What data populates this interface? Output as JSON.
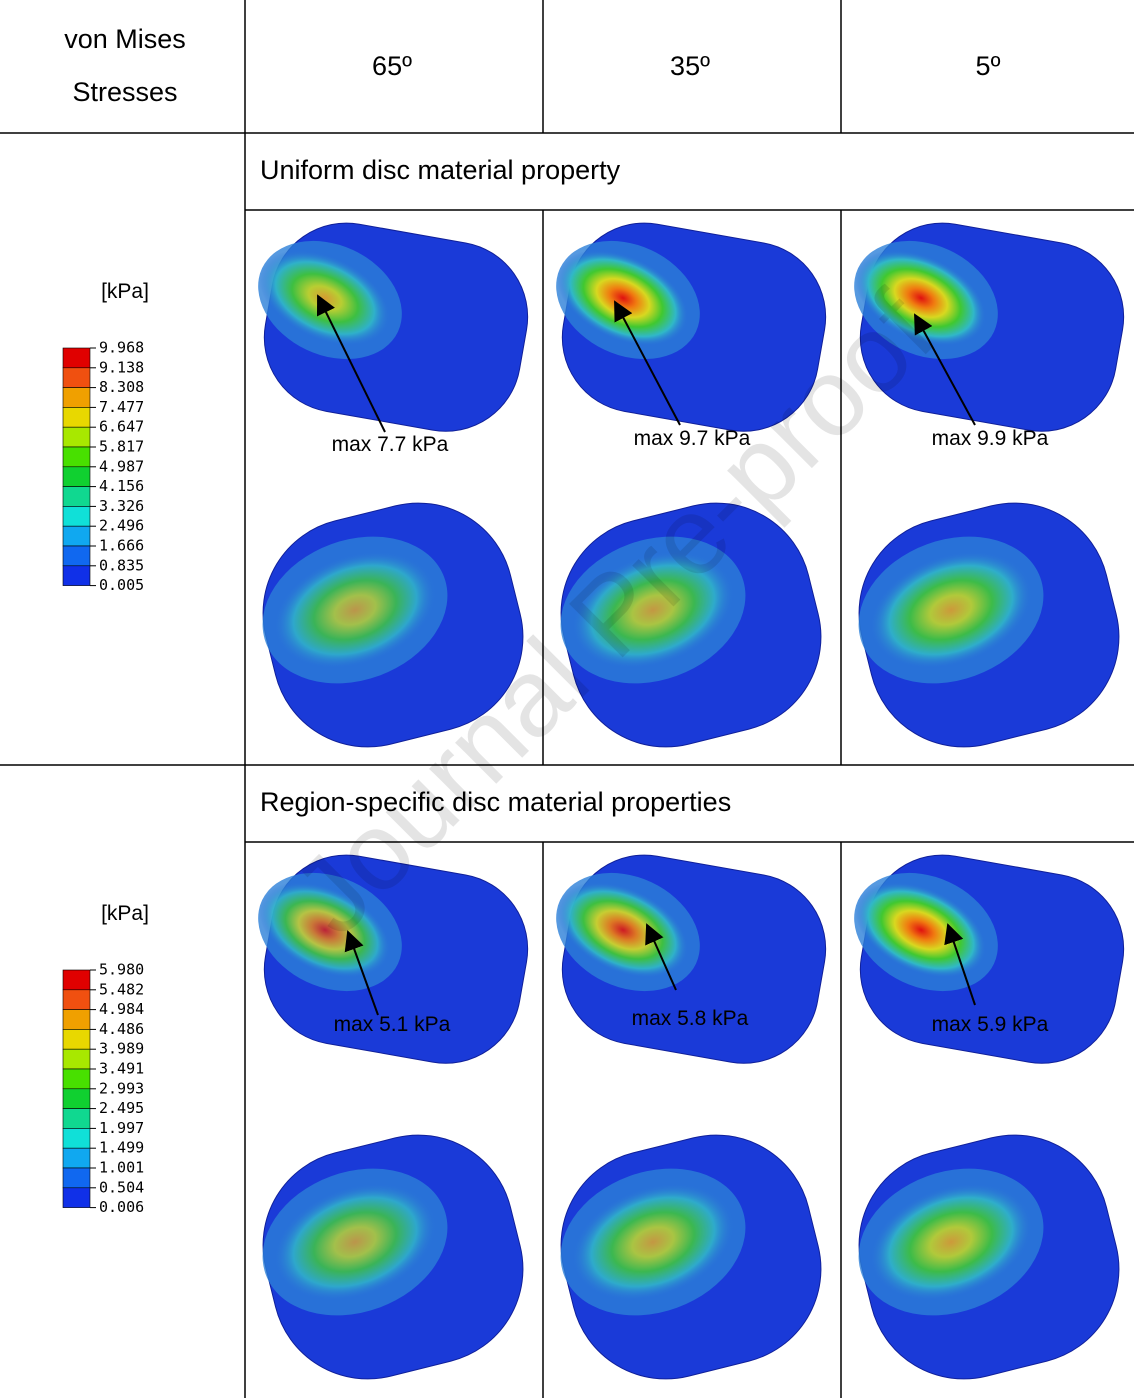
{
  "header": {
    "row_label": [
      "von Mises",
      "Stresses"
    ],
    "columns": [
      "65º",
      "35º",
      "5º"
    ]
  },
  "sections": [
    {
      "title": "Uniform disc material property",
      "legend": {
        "unit": "[kPa]",
        "values": [
          "9.968",
          "9.138",
          "8.308",
          "7.477",
          "6.647",
          "5.817",
          "4.987",
          "4.156",
          "3.326",
          "2.496",
          "1.666",
          "0.835",
          "0.005"
        ]
      },
      "annotations": [
        "max 7.7 kPa",
        "max 9.7 kPa",
        "max 9.9 kPa"
      ]
    },
    {
      "title": "Region-specific disc material properties",
      "legend": {
        "unit": "[kPa]",
        "values": [
          "5.980",
          "5.482",
          "4.984",
          "4.486",
          "3.989",
          "3.491",
          "2.993",
          "2.495",
          "1.997",
          "1.499",
          "1.001",
          "0.504",
          "0.006"
        ]
      },
      "annotations": [
        "max 5.1 kPa",
        "max 5.8 kPa",
        "max 5.9 kPa"
      ]
    }
  ],
  "watermark": "Journal Pre-proof"
}
